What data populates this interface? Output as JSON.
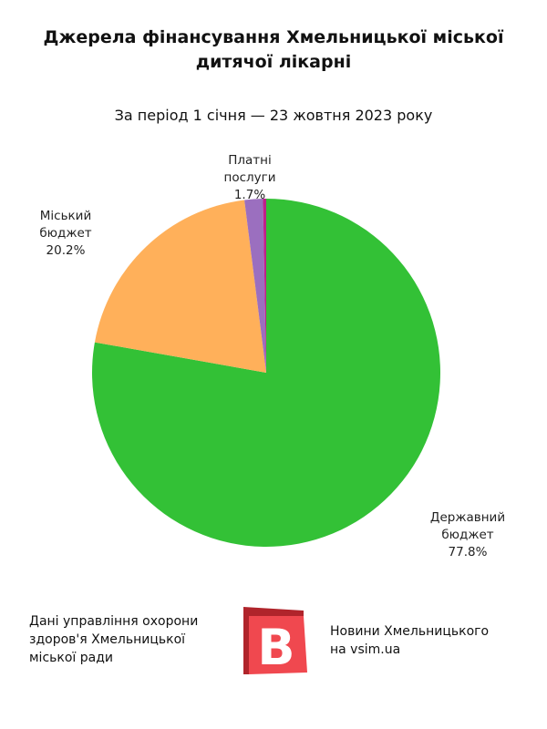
{
  "header": {
    "title_line1": "Джерела фінансування Хмельницької міської",
    "title_line2": "дитячої лікарні",
    "subtitle": "За період 1 січня — 23 жовтня 2023 року"
  },
  "chart_data": {
    "type": "pie",
    "title": "Джерела фінансування Хмельницької міської дитячої лікарні",
    "subtitle": "За період 1 січня — 23 жовтня 2023 року",
    "slices": [
      {
        "label_lines": [
          "Державний",
          "бюджет"
        ],
        "value": 77.8,
        "value_label": "77.8%",
        "color": "#33c136"
      },
      {
        "label_lines": [
          "Міський",
          "бюджет"
        ],
        "value": 20.2,
        "value_label": "20.2%",
        "color": "#ffb05a"
      },
      {
        "label_lines": [
          "Платні",
          "послуги"
        ],
        "value": 1.7,
        "value_label": "1.7%",
        "color": "#9b6fbf"
      },
      {
        "label_lines": [],
        "value": 0.3,
        "value_label": "",
        "color": "#c0208a"
      }
    ],
    "legend": "none"
  },
  "footer": {
    "source_line1": "Дані управління охорони",
    "source_line2": "здоров'я Хмельницької",
    "source_line3": "міської ради",
    "logo_letter": "B",
    "logo_colors": {
      "main": "#f0484f",
      "shadow": "#b0242b",
      "letter": "#ffffff"
    },
    "news_line1": "Новини Хмельницького",
    "news_line2": "на vsim.ua"
  }
}
